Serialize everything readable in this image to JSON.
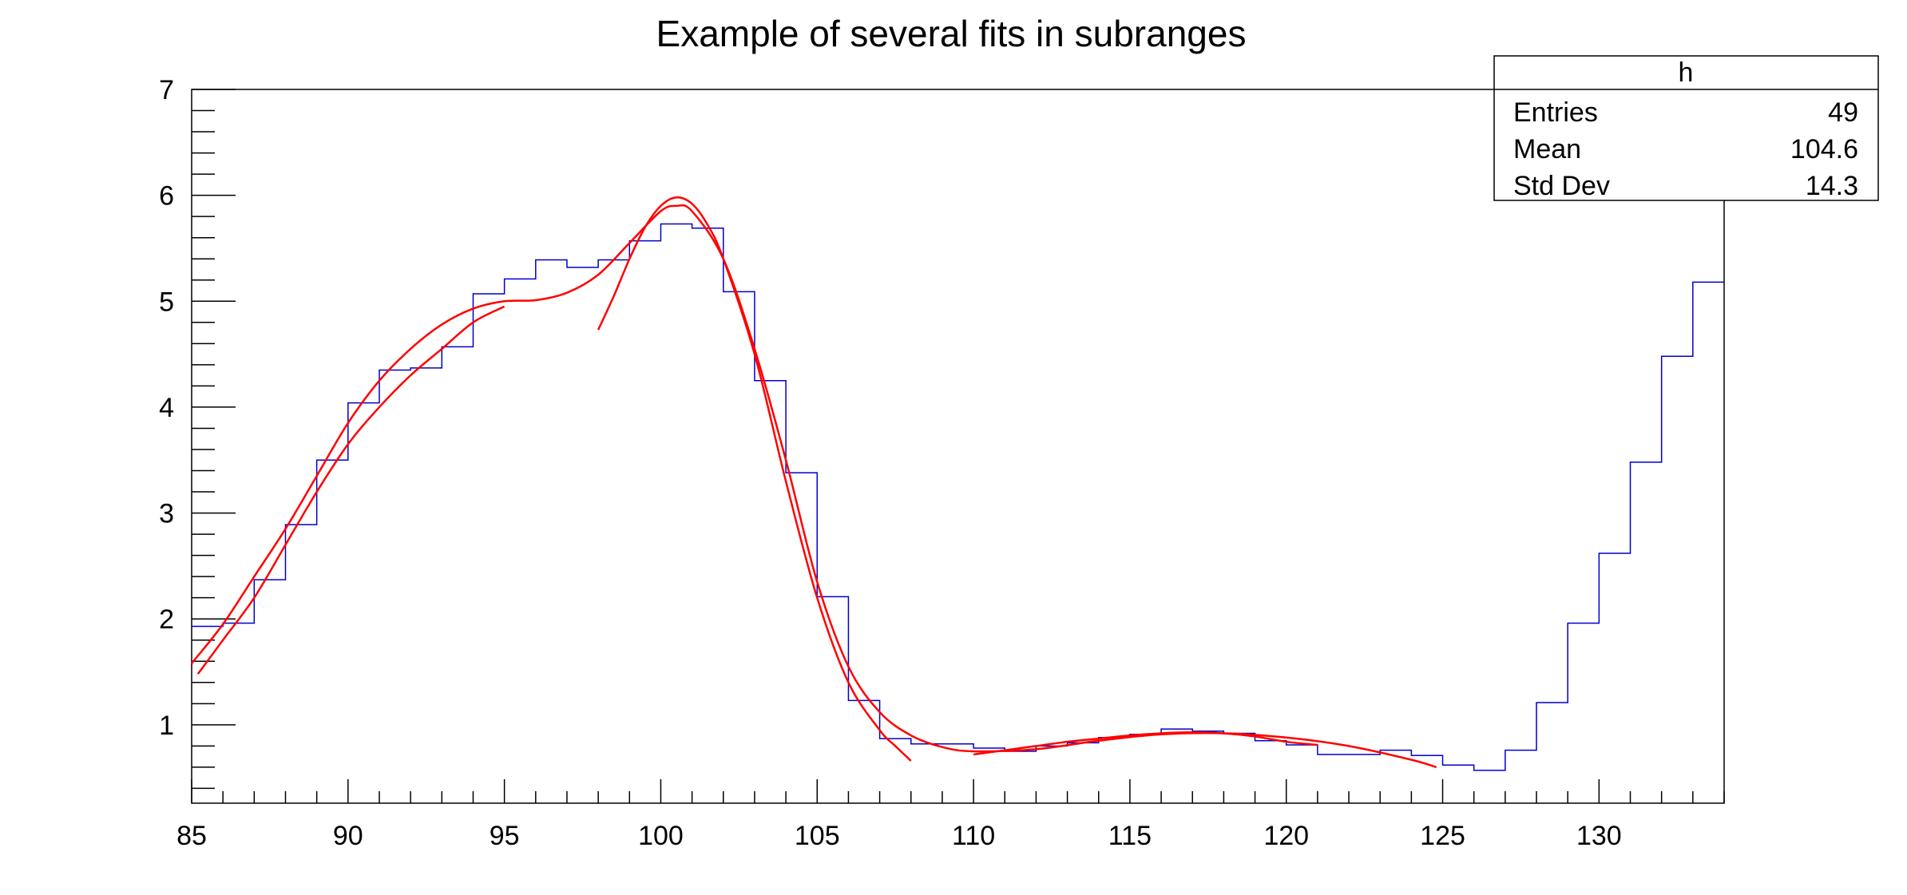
{
  "chart_data": {
    "type": "histogram",
    "title": "Example of several fits in subranges",
    "xlabel": "",
    "ylabel": "",
    "xlim": [
      85,
      134
    ],
    "ylim": [
      0.26,
      7
    ],
    "x_ticks": [
      85,
      90,
      95,
      100,
      105,
      110,
      115,
      120,
      125,
      130
    ],
    "y_ticks": [
      1,
      2,
      3,
      4,
      5,
      6,
      7
    ],
    "grid": false,
    "histogram": {
      "name": "h",
      "color": "#0000cc",
      "bin_low_edges": [
        85,
        86,
        87,
        88,
        89,
        90,
        91,
        92,
        93,
        94,
        95,
        96,
        97,
        98,
        99,
        100,
        101,
        102,
        103,
        104,
        105,
        106,
        107,
        108,
        109,
        110,
        111,
        112,
        113,
        114,
        115,
        116,
        117,
        118,
        119,
        120,
        121,
        122,
        123,
        124,
        125,
        126,
        127,
        128,
        129,
        130,
        131,
        132,
        133
      ],
      "bin_width": 1,
      "values": [
        1.93,
        1.96,
        2.37,
        2.89,
        3.5,
        4.04,
        4.35,
        4.37,
        4.57,
        5.07,
        5.21,
        5.39,
        5.32,
        5.39,
        5.57,
        5.73,
        5.69,
        5.09,
        4.25,
        3.38,
        2.21,
        1.23,
        0.87,
        0.82,
        0.82,
        0.78,
        0.75,
        0.8,
        0.83,
        0.88,
        0.91,
        0.96,
        0.94,
        0.92,
        0.85,
        0.81,
        0.72,
        0.72,
        0.76,
        0.71,
        0.62,
        0.57,
        0.76,
        1.21,
        1.96,
        2.62,
        3.48,
        4.48,
        5.18
      ]
    },
    "fits": [
      {
        "color": "#ff0000",
        "x": [
          85.2,
          86,
          87,
          88,
          89,
          90,
          91,
          92,
          93,
          94,
          95
        ],
        "y": [
          1.48,
          1.8,
          2.2,
          2.7,
          3.2,
          3.65,
          4.0,
          4.3,
          4.55,
          4.8,
          4.95
        ]
      },
      {
        "color": "#ff0000",
        "x": [
          85,
          86,
          87,
          88,
          89,
          90,
          91,
          92,
          93,
          94,
          95,
          96,
          97,
          98,
          99,
          100,
          100.5,
          101,
          102,
          103,
          104,
          105,
          106,
          107,
          108,
          109,
          110,
          112,
          114,
          116,
          118,
          120,
          122,
          124,
          124.8
        ],
        "y": [
          1.58,
          1.95,
          2.4,
          2.85,
          3.35,
          3.85,
          4.25,
          4.55,
          4.78,
          4.93,
          5.0,
          5.01,
          5.08,
          5.25,
          5.55,
          5.85,
          5.9,
          5.85,
          5.4,
          4.55,
          3.5,
          2.35,
          1.55,
          1.12,
          0.9,
          0.79,
          0.75,
          0.77,
          0.85,
          0.91,
          0.92,
          0.88,
          0.8,
          0.67,
          0.6
        ]
      },
      {
        "color": "#ff0000",
        "x": [
          98,
          98.5,
          99,
          99.5,
          100,
          100.5,
          101,
          101.5,
          102,
          103,
          104,
          105,
          106,
          107,
          107.5,
          108
        ],
        "y": [
          4.73,
          5.05,
          5.4,
          5.7,
          5.9,
          5.98,
          5.92,
          5.72,
          5.4,
          4.5,
          3.3,
          2.2,
          1.4,
          0.95,
          0.8,
          0.66
        ]
      },
      {
        "color": "#ff0000",
        "x": [
          110,
          111,
          112,
          113,
          114,
          115,
          116,
          117,
          118,
          119,
          120,
          121
        ],
        "y": [
          0.72,
          0.76,
          0.8,
          0.84,
          0.87,
          0.9,
          0.92,
          0.93,
          0.92,
          0.89,
          0.84,
          0.81
        ]
      }
    ],
    "stats_box": {
      "title": "h",
      "rows": [
        {
          "label": "Entries",
          "value": "49"
        },
        {
          "label": "Mean",
          "value": "104.6"
        },
        {
          "label": "Std Dev",
          "value": "14.3"
        }
      ]
    }
  }
}
